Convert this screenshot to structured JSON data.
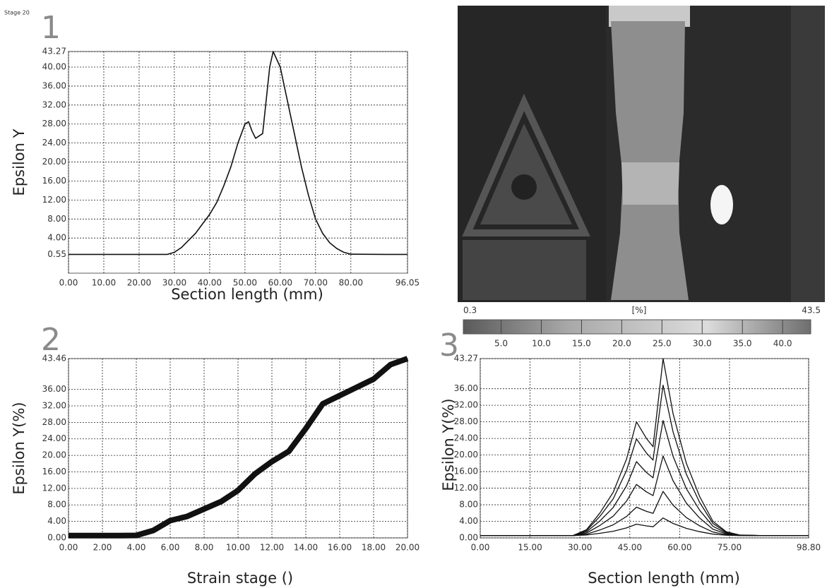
{
  "stage_label": "Stage 20",
  "panel_labels": [
    "1",
    "2",
    "3"
  ],
  "colorbar": {
    "lim": [
      0.3,
      43.5
    ],
    "label": "[%]",
    "ticks": [
      {
        "value": 5,
        "label": "5.0"
      },
      {
        "value": 10,
        "label": "10.0"
      },
      {
        "value": 15,
        "label": "15.0"
      },
      {
        "value": 20,
        "label": "20.0"
      },
      {
        "value": 25,
        "label": "25.0"
      },
      {
        "value": 30,
        "label": "30.0"
      },
      {
        "value": 35,
        "label": "35.0"
      },
      {
        "value": 40,
        "label": "40.0"
      }
    ]
  },
  "chart_data": [
    {
      "type": "line",
      "ylabel": "Epsilon Y",
      "xlabel": "Section length (mm)",
      "color": "#111111",
      "grid": true,
      "xlim": [
        0,
        96.05
      ],
      "ylim": [
        -3.4,
        43.27
      ],
      "xticks": [
        {
          "value": 0,
          "label": "0.00"
        },
        {
          "value": 10,
          "label": "10.00"
        },
        {
          "value": 20,
          "label": "20.00"
        },
        {
          "value": 30,
          "label": "30.00"
        },
        {
          "value": 40,
          "label": "40.00"
        },
        {
          "value": 50,
          "label": "50.00"
        },
        {
          "value": 60,
          "label": "60.00"
        },
        {
          "value": 70,
          "label": "70.00"
        },
        {
          "value": 80,
          "label": "80.00"
        },
        96.05
      ],
      "yticks": [
        0.55,
        {
          "value": 4,
          "label": "4.00"
        },
        {
          "value": 8,
          "label": "8.00"
        },
        {
          "value": 12,
          "label": "12.00"
        },
        {
          "value": 16,
          "label": "16.00"
        },
        {
          "value": 20,
          "label": "20.00"
        },
        {
          "value": 24,
          "label": "24.00"
        },
        {
          "value": 28,
          "label": "28.00"
        },
        {
          "value": 32,
          "label": "32.00"
        },
        {
          "value": 36,
          "label": "36.00"
        },
        {
          "value": 40,
          "label": "40.00"
        },
        43.27
      ],
      "x": [
        0,
        10,
        20,
        28,
        30,
        32,
        34,
        36,
        38,
        40,
        42,
        44,
        46,
        48,
        50,
        51,
        52,
        53,
        55,
        56,
        57,
        58,
        60,
        62,
        64,
        66,
        68,
        70,
        72,
        74,
        76,
        78,
        80,
        90,
        96
      ],
      "values": [
        0.55,
        0.55,
        0.55,
        0.55,
        1,
        2,
        3.5,
        5,
        7,
        9,
        11.5,
        15,
        19,
        24,
        28,
        28.5,
        26.5,
        25,
        26,
        33,
        40,
        43.27,
        40,
        33,
        26,
        19,
        13,
        8,
        5,
        3,
        1.8,
        1,
        0.6,
        0.55,
        0.55
      ]
    },
    {
      "type": "line",
      "ylabel": "Epsilon Y(%)",
      "xlabel": "Strain stage ()",
      "color": "#111111",
      "grid": true,
      "xlim": [
        0,
        20
      ],
      "ylim": [
        0,
        43.46
      ],
      "xticks": [
        {
          "value": 0,
          "label": "0.00"
        },
        {
          "value": 2,
          "label": "2.00"
        },
        {
          "value": 4,
          "label": "4.00"
        },
        {
          "value": 6,
          "label": "6.00"
        },
        {
          "value": 8,
          "label": "8.00"
        },
        {
          "value": 10,
          "label": "10.00"
        },
        {
          "value": 12,
          "label": "12.00"
        },
        {
          "value": 14,
          "label": "14.00"
        },
        {
          "value": 16,
          "label": "16.00"
        },
        {
          "value": 18,
          "label": "18.00"
        },
        {
          "value": 20,
          "label": "20.00"
        }
      ],
      "yticks": [
        {
          "value": 0,
          "label": "0.00"
        },
        {
          "value": 4,
          "label": "4.00"
        },
        {
          "value": 8,
          "label": "8.00"
        },
        {
          "value": 12,
          "label": "12.00"
        },
        {
          "value": 16,
          "label": "16.00"
        },
        {
          "value": 20,
          "label": "20.00"
        },
        {
          "value": 24,
          "label": "24.00"
        },
        {
          "value": 28,
          "label": "28.00"
        },
        {
          "value": 32,
          "label": "32.00"
        },
        {
          "value": 36,
          "label": "36.00"
        },
        43.46
      ],
      "x": [
        0,
        1,
        2,
        3,
        4,
        5,
        6,
        7,
        8,
        9,
        10,
        11,
        12,
        13,
        14,
        15,
        16,
        17,
        18,
        19,
        20
      ],
      "values": [
        0.55,
        0.55,
        0.55,
        0.55,
        0.6,
        1.8,
        4.2,
        5.2,
        7,
        8.8,
        11.5,
        15.5,
        18.5,
        21,
        26.5,
        32.5,
        34.5,
        36.5,
        38.5,
        42,
        43.46
      ]
    },
    {
      "type": "line",
      "ylabel": "Epsilon Y(%)",
      "xlabel": "Section length (mm)",
      "grid": true,
      "xlim": [
        0,
        98.8
      ],
      "ylim": [
        0,
        43.27
      ],
      "xticks": [
        {
          "value": 0,
          "label": "0.00"
        },
        {
          "value": 15,
          "label": "15.00"
        },
        {
          "value": 30,
          "label": "30.00"
        },
        {
          "value": 45,
          "label": "45.00"
        },
        {
          "value": 60,
          "label": "60.00"
        },
        {
          "value": 75,
          "label": "75.00"
        },
        {
          "value": 98.8,
          "label": "98.80"
        }
      ],
      "yticks": [
        {
          "value": 0,
          "label": "0.00"
        },
        {
          "value": 4,
          "label": "4.00"
        },
        {
          "value": 8,
          "label": "8.00"
        },
        {
          "value": 12,
          "label": "12.00"
        },
        {
          "value": 16,
          "label": "16.00"
        },
        {
          "value": 20,
          "label": "20.00"
        },
        {
          "value": 24,
          "label": "24.00"
        },
        {
          "value": 28,
          "label": "28.00"
        },
        {
          "value": 32,
          "label": "32.00"
        },
        {
          "value": 36,
          "label": "36.00"
        },
        43.27
      ],
      "x": [
        0,
        10,
        20,
        28,
        32,
        36,
        40,
        44,
        47,
        50,
        52,
        55,
        58,
        62,
        66,
        70,
        74,
        78,
        85,
        98.8
      ],
      "series": [
        {
          "color": "#111111",
          "values": [
            0.55,
            0.55,
            0.55,
            0.56,
            0.7,
            1.1,
            1.6,
            2.4,
            3.3,
            2.9,
            2.7,
            4.8,
            3.5,
            2.3,
            1.5,
            0.9,
            0.65,
            0.57,
            0.55,
            0.55
          ]
        },
        {
          "color": "#111111",
          "values": [
            0.55,
            0.55,
            0.55,
            0.56,
            0.91,
            1.91,
            3.16,
            5.16,
            7.41,
            6.41,
            5.91,
            11.23,
            7.91,
            4.91,
            2.91,
            1.41,
            0.79,
            0.59,
            0.55,
            0.55
          ]
        },
        {
          "color": "#111111",
          "values": [
            0.55,
            0.55,
            0.55,
            0.57,
            1.2,
            3.0,
            5.25,
            8.85,
            12.9,
            11.1,
            10.2,
            19.77,
            13.8,
            8.4,
            4.8,
            2.1,
            0.98,
            0.62,
            0.55,
            0.55
          ]
        },
        {
          "color": "#111111",
          "values": [
            0.55,
            0.55,
            0.55,
            0.58,
            1.49,
            4.09,
            7.34,
            12.54,
            18.39,
            15.79,
            14.49,
            28.32,
            19.69,
            11.89,
            6.69,
            2.79,
            1.17,
            0.65,
            0.55,
            0.55
          ]
        },
        {
          "color": "#111111",
          "values": [
            0.55,
            0.55,
            0.55,
            0.59,
            1.78,
            5.18,
            9.43,
            16.23,
            23.88,
            20.48,
            18.78,
            36.86,
            25.58,
            15.38,
            8.58,
            3.48,
            1.36,
            0.68,
            0.55,
            0.55
          ]
        },
        {
          "color": "#111111",
          "values": [
            0.55,
            0.55,
            0.55,
            0.6,
            2,
            6,
            11,
            19,
            28,
            24,
            22,
            43.27,
            30,
            18,
            10,
            4,
            1.5,
            0.7,
            0.55,
            0.55
          ]
        }
      ]
    }
  ]
}
